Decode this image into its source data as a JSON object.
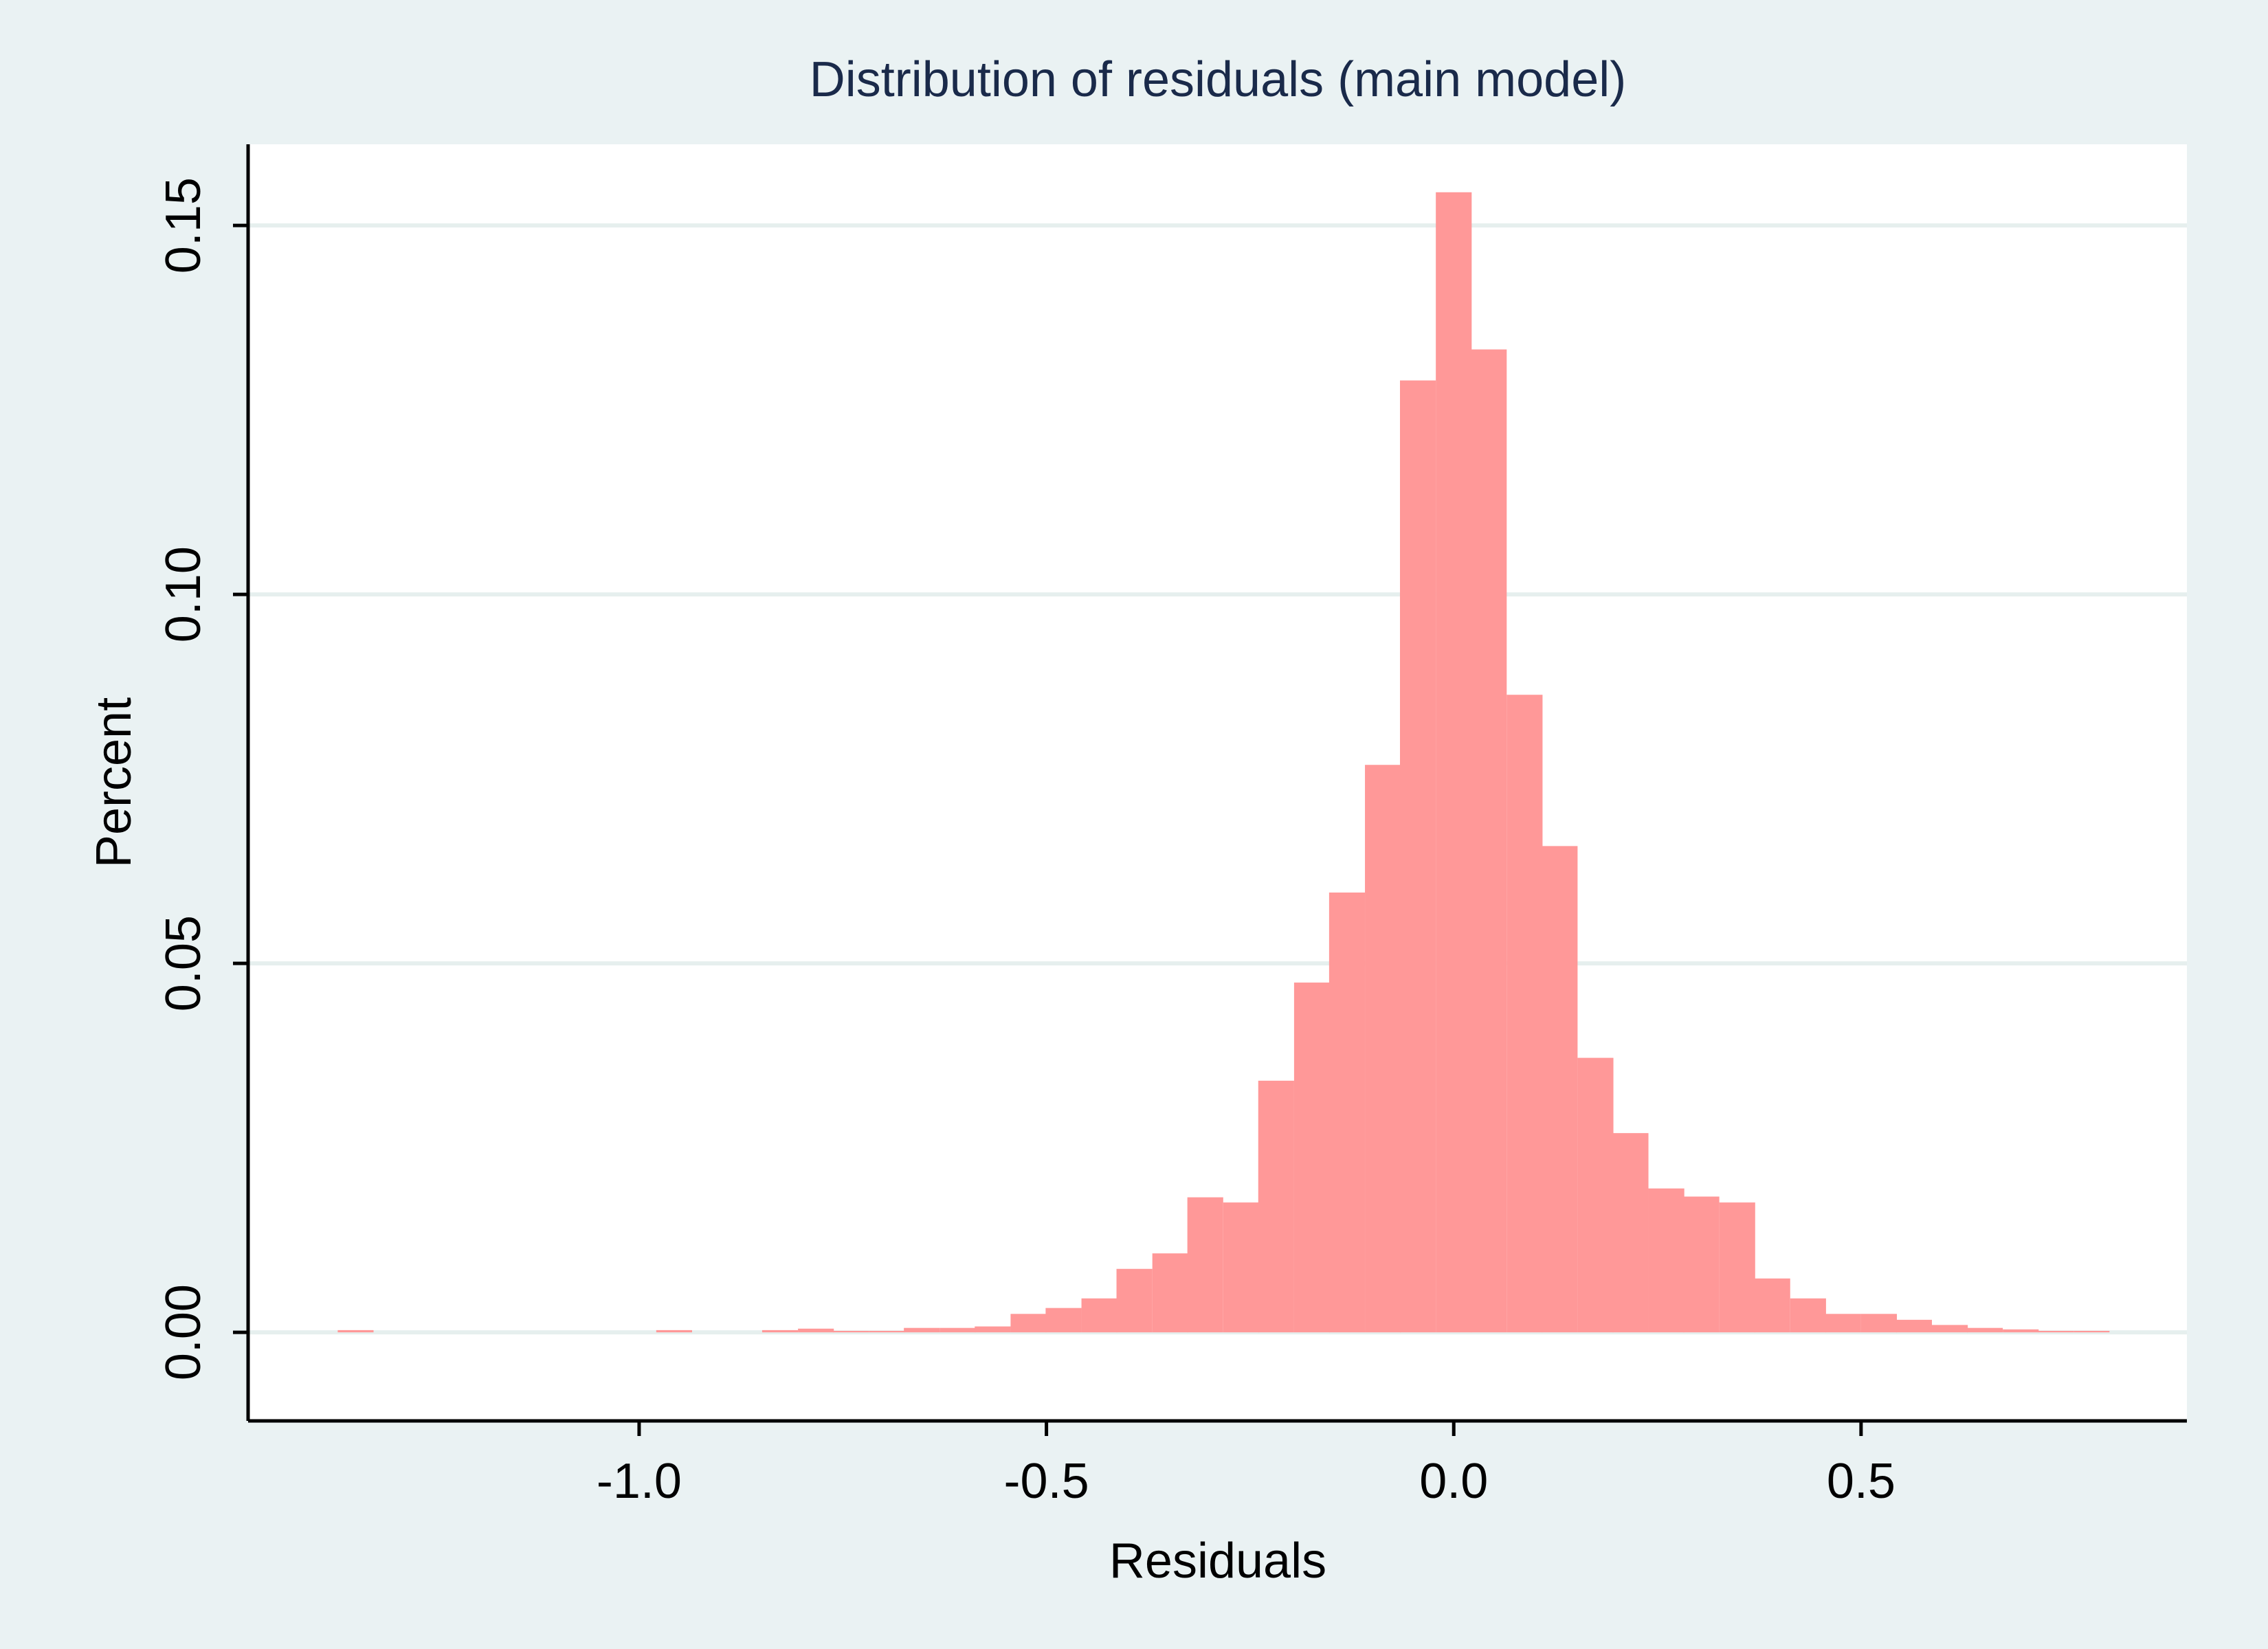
{
  "chart_data": {
    "type": "bar",
    "title": "Distribution of residuals (main model)",
    "xlabel": "Residuals",
    "ylabel": "Percent",
    "xlim": [
      -1.48,
      0.9
    ],
    "ylim": [
      -0.012,
      0.161
    ],
    "x_ticks": [
      -1.0,
      -0.5,
      0.0,
      0.5
    ],
    "x_tick_labels": [
      "-1.0",
      "-0.5",
      "0.0",
      "0.5"
    ],
    "y_ticks": [
      0.0,
      0.05,
      0.1,
      0.15
    ],
    "y_tick_labels": [
      "0.00",
      "0.05",
      "0.10",
      "0.15"
    ],
    "grid": "horizontal",
    "legend": "none",
    "bin_width": 0.0435,
    "bins": [
      {
        "x0": -1.37,
        "value": 0.0003
      },
      {
        "x0": -0.979,
        "value": 0.0003
      },
      {
        "x0": -0.849,
        "value": 0.0003
      },
      {
        "x0": -0.805,
        "value": 0.0005
      },
      {
        "x0": -0.762,
        "value": 0.0002
      },
      {
        "x0": -0.718,
        "value": 0.0002
      },
      {
        "x0": -0.675,
        "value": 0.0006
      },
      {
        "x0": -0.631,
        "value": 0.0006
      },
      {
        "x0": -0.588,
        "value": 0.0008
      },
      {
        "x0": -0.544,
        "value": 0.0025
      },
      {
        "x0": -0.501,
        "value": 0.0033
      },
      {
        "x0": -0.457,
        "value": 0.0046
      },
      {
        "x0": -0.414,
        "value": 0.0086
      },
      {
        "x0": -0.37,
        "value": 0.0107
      },
      {
        "x0": -0.327,
        "value": 0.0183
      },
      {
        "x0": -0.283,
        "value": 0.0176
      },
      {
        "x0": -0.24,
        "value": 0.0341
      },
      {
        "x0": -0.196,
        "value": 0.0474
      },
      {
        "x0": -0.153,
        "value": 0.0596
      },
      {
        "x0": -0.109,
        "value": 0.0769
      },
      {
        "x0": -0.066,
        "value": 0.129
      },
      {
        "x0": -0.022,
        "value": 0.1545
      },
      {
        "x0": 0.021,
        "value": 0.1332
      },
      {
        "x0": 0.065,
        "value": 0.0864
      },
      {
        "x0": 0.108,
        "value": 0.0659
      },
      {
        "x0": 0.152,
        "value": 0.0372
      },
      {
        "x0": 0.195,
        "value": 0.027
      },
      {
        "x0": 0.239,
        "value": 0.0195
      },
      {
        "x0": 0.282,
        "value": 0.0184
      },
      {
        "x0": 0.326,
        "value": 0.0176
      },
      {
        "x0": 0.369,
        "value": 0.0073
      },
      {
        "x0": 0.413,
        "value": 0.0046
      },
      {
        "x0": 0.456,
        "value": 0.0025
      },
      {
        "x0": 0.5,
        "value": 0.0025
      },
      {
        "x0": 0.543,
        "value": 0.0017
      },
      {
        "x0": 0.587,
        "value": 0.001
      },
      {
        "x0": 0.63,
        "value": 0.0006
      },
      {
        "x0": 0.674,
        "value": 0.0004
      },
      {
        "x0": 0.717,
        "value": 0.0002
      },
      {
        "x0": 0.761,
        "value": 0.0002
      }
    ]
  },
  "colors": {
    "background": "#eaf2f3",
    "plot_background": "#ffffff",
    "bar_fill": "#ff9898",
    "grid": "#e6efee",
    "axis": "#000000",
    "title": "#1a2a4a"
  }
}
